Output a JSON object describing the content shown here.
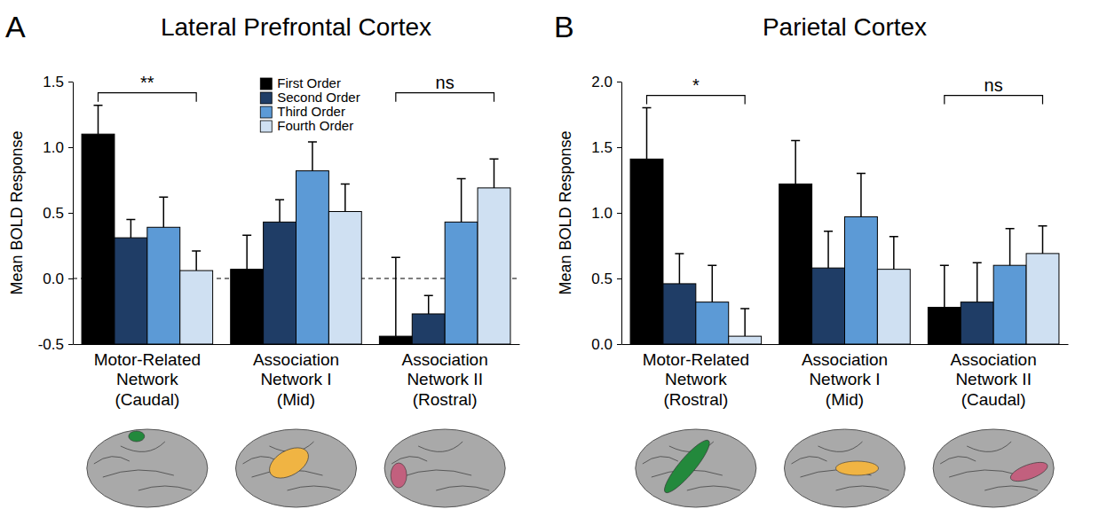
{
  "chart_data": [
    {
      "type": "bar",
      "panel": "A",
      "title": "Lateral Prefrontal Cortex",
      "y_label": "Mean BOLD Response",
      "categories": [
        "Motor-Related\nNetwork\n(Caudal)",
        "Association\nNetwork I\n(Mid)",
        "Association\nNetwork II\n(Rostral)"
      ],
      "series": [
        {
          "name": "First Order",
          "color": "#000000",
          "values": [
            1.1,
            0.07,
            -0.44
          ],
          "errors": [
            0.22,
            0.26,
            0.6
          ]
        },
        {
          "name": "Second Order",
          "color": "#1f3d66",
          "values": [
            0.31,
            0.43,
            -0.27
          ],
          "errors": [
            0.14,
            0.17,
            0.14
          ]
        },
        {
          "name": "Third Order",
          "color": "#5c9ad6",
          "values": [
            0.39,
            0.82,
            0.43
          ],
          "errors": [
            0.23,
            0.22,
            0.33
          ]
        },
        {
          "name": "Fourth Order",
          "color": "#cfe0f2",
          "values": [
            0.06,
            0.51,
            0.69
          ],
          "errors": [
            0.15,
            0.21,
            0.22
          ]
        }
      ],
      "ylim": [
        -0.5,
        1.5
      ],
      "yticks": [
        -0.5,
        {
          "value": 0,
          "label": "0.0"
        },
        0.5,
        {
          "value": 1,
          "label": "1.0"
        },
        1.5
      ],
      "reference_line": {
        "y": 0,
        "line_style": "dashed"
      },
      "annotations": [
        {
          "text": "**",
          "category": 0
        },
        {
          "text": "ns",
          "category": 2
        }
      ],
      "legend": "top"
    },
    {
      "type": "bar",
      "panel": "B",
      "title": "Parietal Cortex",
      "y_label": "Mean BOLD Response",
      "categories": [
        "Motor-Related\nNetwork\n(Rostral)",
        "Association\nNetwork I\n(Mid)",
        "Association\nNetwork II\n(Caudal)"
      ],
      "series": [
        {
          "color": "#000000",
          "values": [
            1.41,
            1.22,
            0.28
          ],
          "errors": [
            0.39,
            0.33,
            0.32
          ]
        },
        {
          "color": "#1f3d66",
          "values": [
            0.46,
            0.58,
            0.32
          ],
          "errors": [
            0.23,
            0.28,
            0.3
          ]
        },
        {
          "color": "#5c9ad6",
          "values": [
            0.32,
            0.97,
            0.6
          ],
          "errors": [
            0.28,
            0.33,
            0.28
          ]
        },
        {
          "color": "#cfe0f2",
          "values": [
            0.06,
            0.57,
            0.69
          ],
          "errors": [
            0.21,
            0.25,
            0.21
          ]
        }
      ],
      "ylim": [
        0,
        2
      ],
      "yticks": [
        {
          "value": 0,
          "label": "0.0"
        },
        0.5,
        {
          "value": 1,
          "label": "1.0"
        },
        1.5,
        {
          "value": 2,
          "label": "2.0"
        }
      ],
      "annotations": [
        {
          "text": "*",
          "category": 0
        },
        {
          "text": "ns",
          "category": 2
        }
      ]
    }
  ]
}
